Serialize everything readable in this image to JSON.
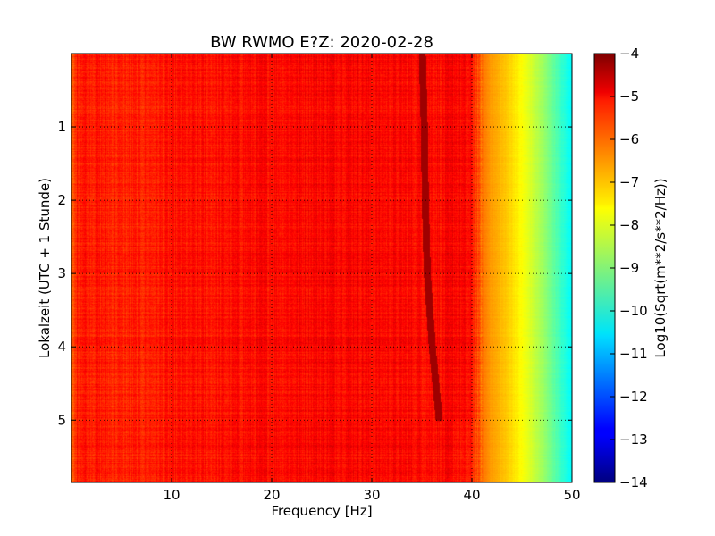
{
  "chart_data": {
    "type": "heatmap",
    "title": "BW RWMO E?Z: 2020-02-28",
    "xlabel": "Frequency [Hz]",
    "ylabel": "Lokalzeit (UTC + 1 Stunde)",
    "colorbar_label": "Log10(Sqrt(m**2/s**2/Hz))",
    "xlim": [
      0,
      50
    ],
    "ylim": [
      5.85,
      0
    ],
    "y_inverted": true,
    "clim": [
      -14,
      -4
    ],
    "colormap": "jet",
    "grid": true,
    "grid_style": "dotted",
    "x_ticks": [
      10,
      20,
      30,
      40,
      50
    ],
    "x_tick_labels": [
      "10",
      "20",
      "30",
      "40",
      "50"
    ],
    "y_ticks": [
      1,
      2,
      3,
      4,
      5
    ],
    "y_tick_labels": [
      "1",
      "2",
      "3",
      "4",
      "5"
    ],
    "colorbar_ticks": [
      -4,
      -5,
      -6,
      -7,
      -8,
      -9,
      -10,
      -11,
      -12,
      -13,
      -14
    ],
    "colorbar_tick_labels": [
      "−4",
      "−5",
      "−6",
      "−7",
      "−8",
      "−9",
      "−10",
      "−11",
      "−12",
      "−13",
      "−14"
    ],
    "spectral_profile": {
      "frequency_hz": [
        0,
        0.5,
        1,
        3,
        5,
        10,
        15,
        20,
        25,
        28,
        30,
        35,
        38,
        40,
        41,
        42,
        43,
        44,
        45,
        46,
        47,
        48,
        49,
        50
      ],
      "level": [
        -6.4,
        -5.5,
        -5.4,
        -5.5,
        -5.6,
        -5.45,
        -5.4,
        -5.3,
        -5.25,
        -5.2,
        -5.3,
        -5.3,
        -5.3,
        -5.6,
        -6.4,
        -6.8,
        -7.1,
        -7.4,
        -7.8,
        -8.2,
        -8.7,
        -9.2,
        -9.8,
        -10.3
      ]
    },
    "line_features": [
      {
        "name": "narrowband-tone",
        "level": -4.3,
        "points": [
          {
            "time": 0.0,
            "frequency_hz": 35.0
          },
          {
            "time": 1.0,
            "frequency_hz": 35.2
          },
          {
            "time": 2.0,
            "frequency_hz": 35.3
          },
          {
            "time": 3.0,
            "frequency_hz": 35.5
          },
          {
            "time": 4.0,
            "frequency_hz": 36.0
          },
          {
            "time": 5.0,
            "frequency_hz": 36.7
          }
        ]
      }
    ]
  }
}
